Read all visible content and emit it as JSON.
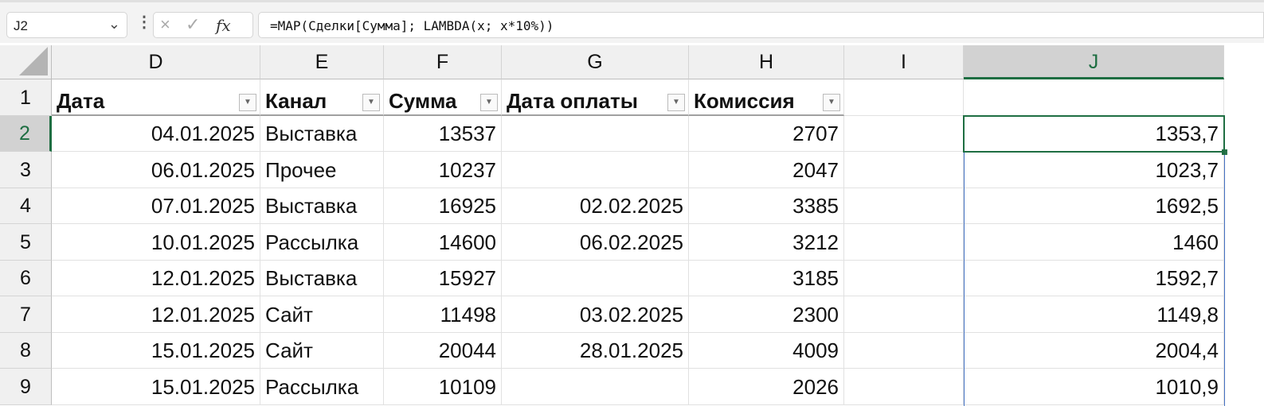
{
  "formula_bar": {
    "name_box": "J2",
    "cancel_icon": "×",
    "enter_icon": "✓",
    "fx_label": "fx",
    "formula": "=MAP(Сделки[Сумма]; LAMBDA(x; x*10%))"
  },
  "selected_cell": "J2",
  "accent_color": "#1e6e42",
  "columns": [
    "D",
    "E",
    "F",
    "G",
    "H",
    "I",
    "J"
  ],
  "rows": [
    "1",
    "2",
    "3",
    "4",
    "5",
    "6",
    "7",
    "8",
    "9"
  ],
  "table_headers": [
    "Дата",
    "Канал",
    "Сумма",
    "Дата оплаты",
    "Комиссия"
  ],
  "data_rows": [
    [
      "04.01.2025",
      "Выставка",
      "13537",
      "",
      "2707",
      "",
      "1353,7"
    ],
    [
      "06.01.2025",
      "Прочее",
      "10237",
      "",
      "2047",
      "",
      "1023,7"
    ],
    [
      "07.01.2025",
      "Выставка",
      "16925",
      "02.02.2025",
      "3385",
      "",
      "1692,5"
    ],
    [
      "10.01.2025",
      "Рассылка",
      "14600",
      "06.02.2025",
      "3212",
      "",
      "1460"
    ],
    [
      "12.01.2025",
      "Выставка",
      "15927",
      "",
      "3185",
      "",
      "1592,7"
    ],
    [
      "12.01.2025",
      "Сайт",
      "11498",
      "03.02.2025",
      "2300",
      "",
      "1149,8"
    ],
    [
      "15.01.2025",
      "Сайт",
      "20044",
      "28.01.2025",
      "4009",
      "",
      "2004,4"
    ],
    [
      "15.01.2025",
      "Рассылка",
      "10109",
      "",
      "2026",
      "",
      "1010,9"
    ]
  ]
}
